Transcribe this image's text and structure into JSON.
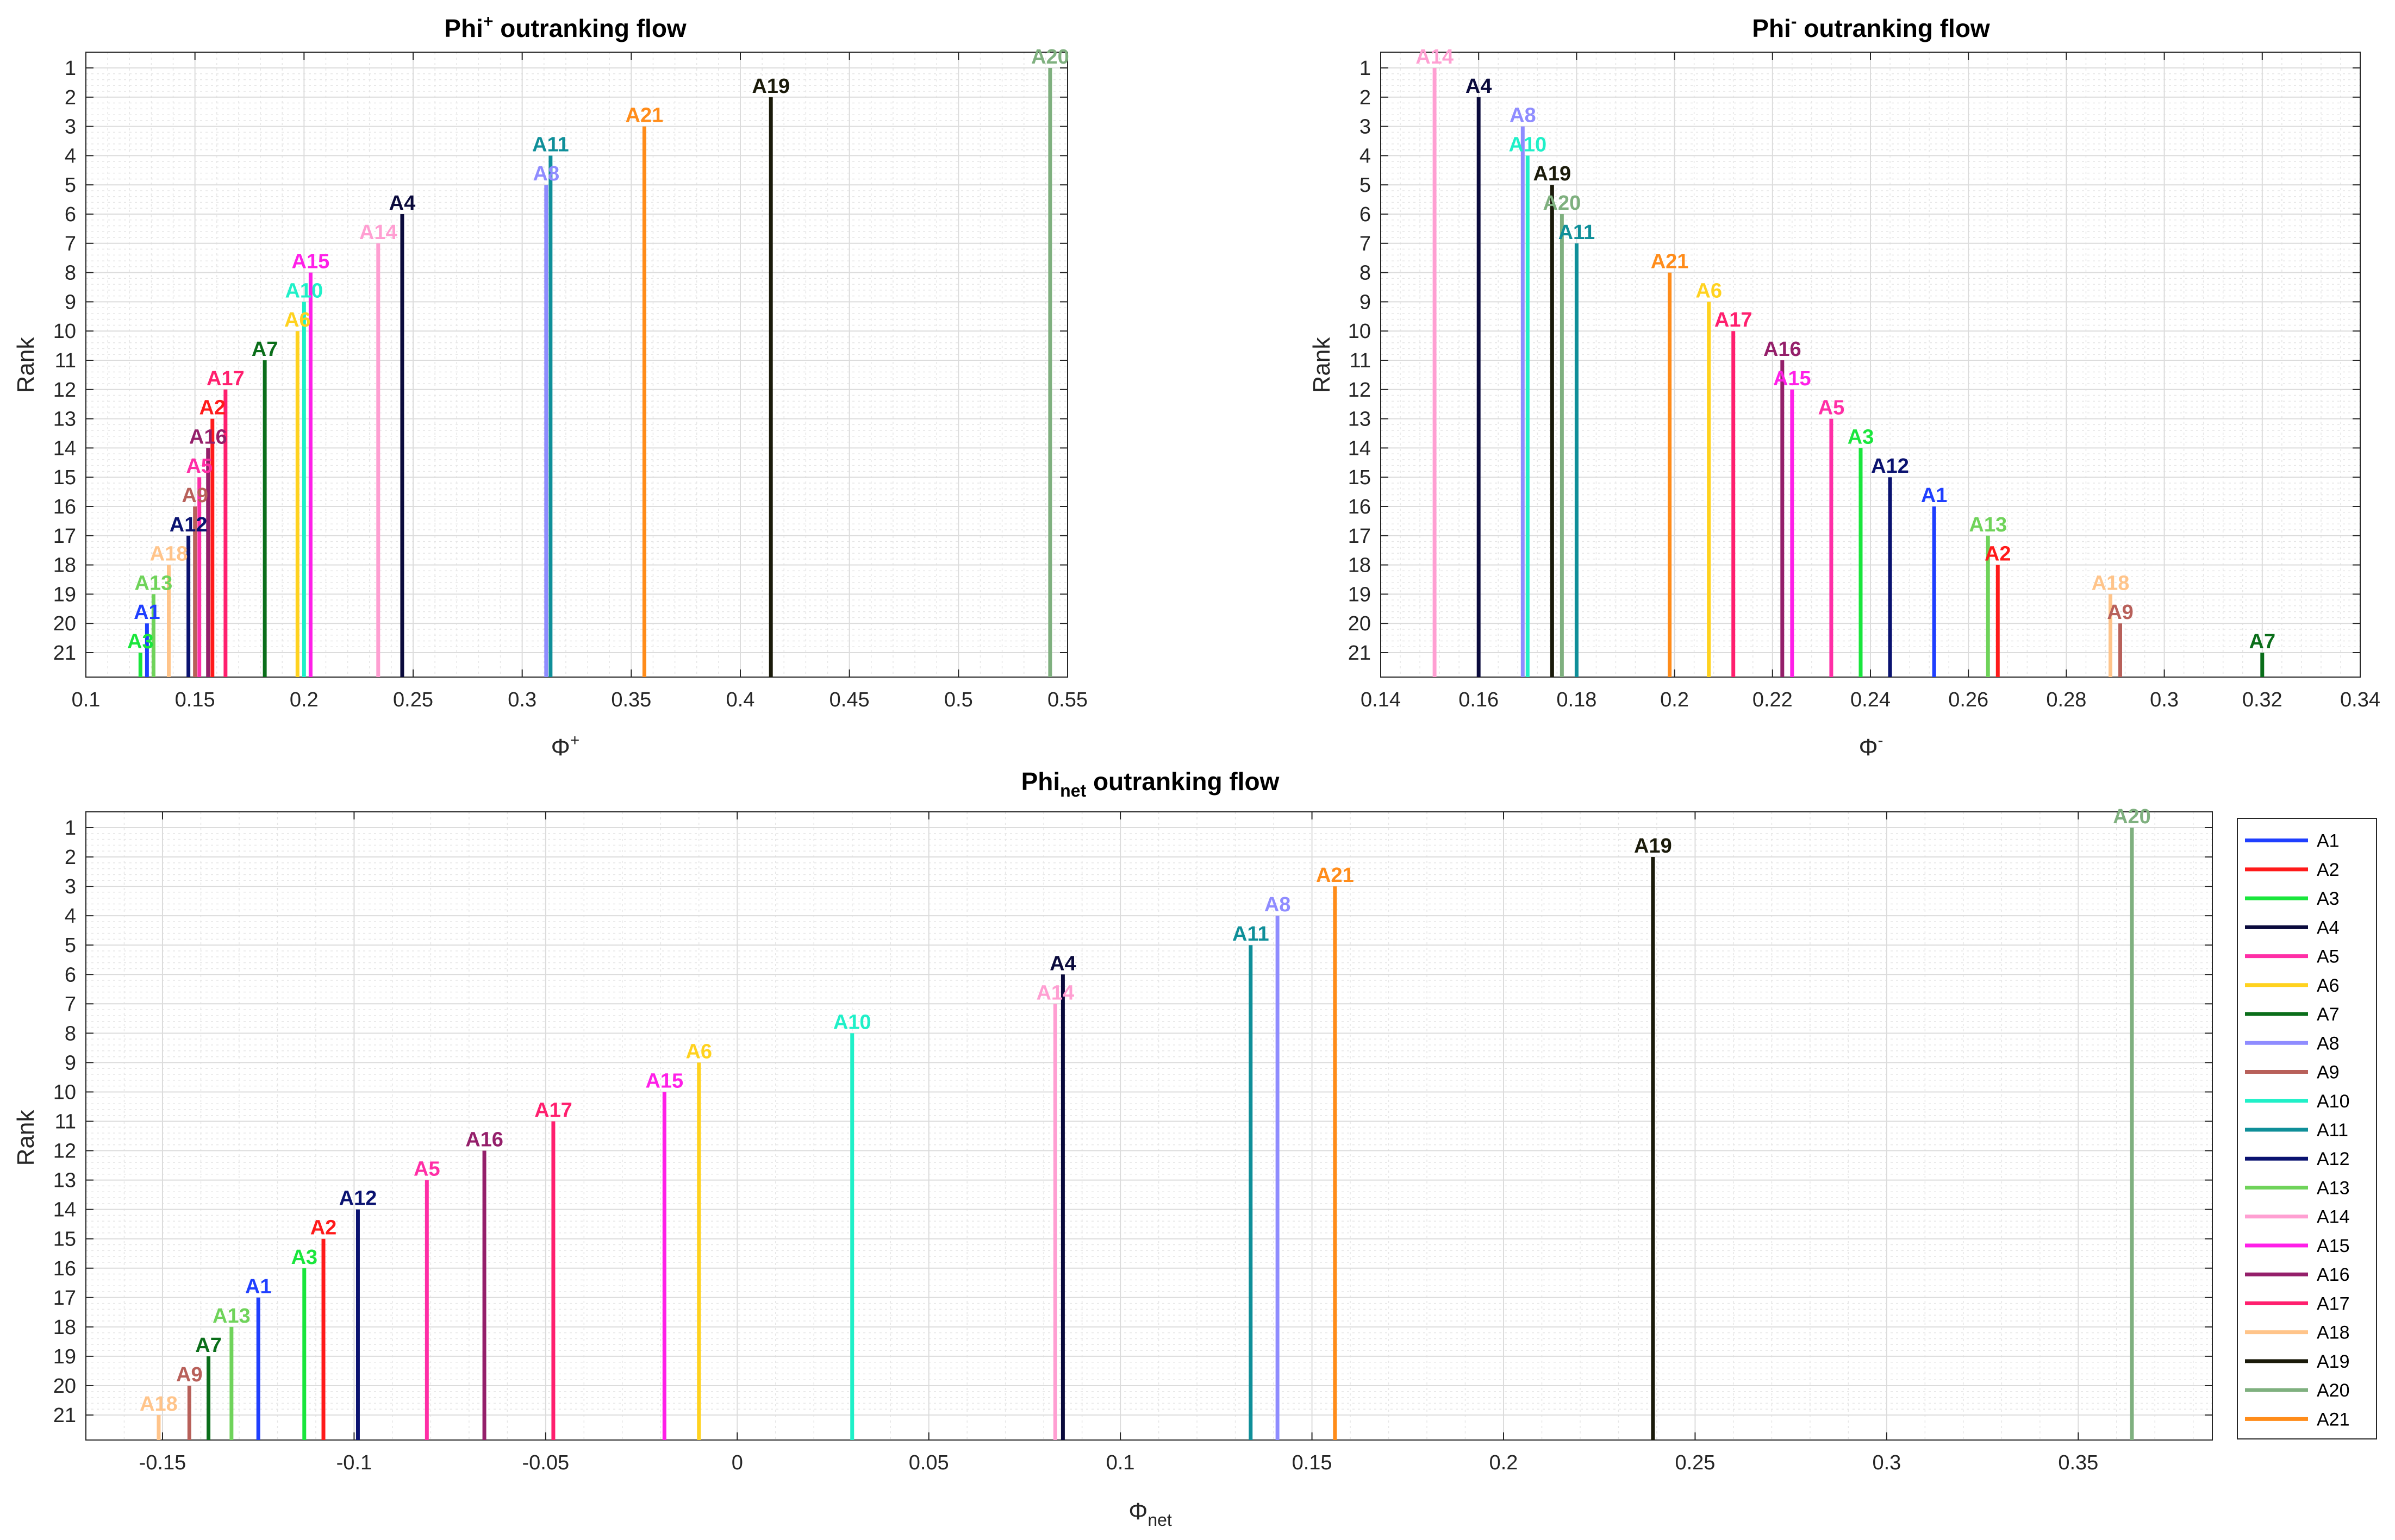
{
  "colors": {
    "A1": "#1f3fff",
    "A2": "#ff1a1a",
    "A3": "#19e63c",
    "A4": "#0a0a3c",
    "A5": "#ff2ea6",
    "A6": "#ffd21f",
    "A7": "#0a6e1a",
    "A8": "#8f8cff",
    "A9": "#b8605a",
    "A10": "#1ff0c8",
    "A11": "#0f8f99",
    "A12": "#0a1270",
    "A13": "#6fd35a",
    "A14": "#ff9fd2",
    "A15": "#ff1fe8",
    "A16": "#941f6a",
    "A17": "#ff1f6e",
    "A18": "#ffc48a",
    "A19": "#1a1a0a",
    "A20": "#7fb07f",
    "A21": "#ff8c1a"
  },
  "chart_data": [
    {
      "type": "stem",
      "title": {
        "main": "Phi",
        "sup": "+",
        "rest": " outranking flow"
      },
      "xlabel": {
        "main": "Φ",
        "sup": "+"
      },
      "ylabel": "Rank",
      "xlim": [
        0.1,
        0.55
      ],
      "xticks": [
        0.1,
        0.15,
        0.2,
        0.25,
        0.3,
        0.35,
        0.4,
        0.45,
        0.5,
        0.55
      ],
      "xtick_labels": [
        "0.1",
        "0.15",
        "0.2",
        "0.25",
        "0.3",
        "0.35",
        "0.4",
        "0.45",
        "0.5",
        "0.55"
      ],
      "ylim": [
        1,
        21
      ],
      "yticks": [
        "1",
        "2",
        "3",
        "4",
        "5",
        "6",
        "7",
        "8",
        "9",
        "10",
        "11",
        "12",
        "13",
        "14",
        "15",
        "16",
        "17",
        "18",
        "19",
        "20",
        "21"
      ],
      "grid": true,
      "points": [
        {
          "name": "A20",
          "x": 0.542,
          "rank": 1
        },
        {
          "name": "A19",
          "x": 0.414,
          "rank": 2
        },
        {
          "name": "A21",
          "x": 0.356,
          "rank": 3
        },
        {
          "name": "A11",
          "x": 0.313,
          "rank": 4
        },
        {
          "name": "A8",
          "x": 0.311,
          "rank": 5
        },
        {
          "name": "A4",
          "x": 0.245,
          "rank": 6
        },
        {
          "name": "A14",
          "x": 0.234,
          "rank": 7
        },
        {
          "name": "A15",
          "x": 0.203,
          "rank": 8
        },
        {
          "name": "A10",
          "x": 0.2,
          "rank": 9
        },
        {
          "name": "A6",
          "x": 0.197,
          "rank": 10
        },
        {
          "name": "A7",
          "x": 0.182,
          "rank": 11
        },
        {
          "name": "A17",
          "x": 0.164,
          "rank": 12
        },
        {
          "name": "A2",
          "x": 0.158,
          "rank": 13
        },
        {
          "name": "A16",
          "x": 0.156,
          "rank": 14
        },
        {
          "name": "A5",
          "x": 0.152,
          "rank": 15
        },
        {
          "name": "A9",
          "x": 0.15,
          "rank": 16
        },
        {
          "name": "A12",
          "x": 0.147,
          "rank": 17
        },
        {
          "name": "A18",
          "x": 0.138,
          "rank": 18
        },
        {
          "name": "A13",
          "x": 0.131,
          "rank": 19
        },
        {
          "name": "A1",
          "x": 0.128,
          "rank": 20
        },
        {
          "name": "A3",
          "x": 0.125,
          "rank": 21
        }
      ]
    },
    {
      "type": "stem",
      "title": {
        "main": "Phi",
        "sup": "-",
        "rest": " outranking flow"
      },
      "xlabel": {
        "main": "Φ",
        "sup": "-"
      },
      "ylabel": "Rank",
      "xlim": [
        0.14,
        0.34
      ],
      "xticks": [
        0.14,
        0.16,
        0.18,
        0.2,
        0.22,
        0.24,
        0.26,
        0.28,
        0.3,
        0.32,
        0.34
      ],
      "xtick_labels": [
        "0.14",
        "0.16",
        "0.18",
        "0.2",
        "0.22",
        "0.24",
        "0.26",
        "0.28",
        "0.3",
        "0.32",
        "0.34"
      ],
      "ylim": [
        1,
        21
      ],
      "yticks": [
        "1",
        "2",
        "3",
        "4",
        "5",
        "6",
        "7",
        "8",
        "9",
        "10",
        "11",
        "12",
        "13",
        "14",
        "15",
        "16",
        "17",
        "18",
        "19",
        "20",
        "21"
      ],
      "grid": true,
      "points": [
        {
          "name": "A14",
          "x": 0.151,
          "rank": 1
        },
        {
          "name": "A4",
          "x": 0.16,
          "rank": 2
        },
        {
          "name": "A8",
          "x": 0.169,
          "rank": 3
        },
        {
          "name": "A10",
          "x": 0.17,
          "rank": 4
        },
        {
          "name": "A19",
          "x": 0.175,
          "rank": 5
        },
        {
          "name": "A20",
          "x": 0.177,
          "rank": 6
        },
        {
          "name": "A11",
          "x": 0.18,
          "rank": 7
        },
        {
          "name": "A21",
          "x": 0.199,
          "rank": 8
        },
        {
          "name": "A6",
          "x": 0.207,
          "rank": 9
        },
        {
          "name": "A17",
          "x": 0.212,
          "rank": 10
        },
        {
          "name": "A16",
          "x": 0.222,
          "rank": 11
        },
        {
          "name": "A15",
          "x": 0.224,
          "rank": 12
        },
        {
          "name": "A5",
          "x": 0.232,
          "rank": 13
        },
        {
          "name": "A3",
          "x": 0.238,
          "rank": 14
        },
        {
          "name": "A12",
          "x": 0.244,
          "rank": 15
        },
        {
          "name": "A1",
          "x": 0.253,
          "rank": 16
        },
        {
          "name": "A13",
          "x": 0.264,
          "rank": 17
        },
        {
          "name": "A2",
          "x": 0.266,
          "rank": 18
        },
        {
          "name": "A18",
          "x": 0.289,
          "rank": 19
        },
        {
          "name": "A9",
          "x": 0.291,
          "rank": 20
        },
        {
          "name": "A7",
          "x": 0.32,
          "rank": 21
        }
      ]
    },
    {
      "type": "stem",
      "title": {
        "main": "Phi",
        "sub": "net",
        "rest": " outranking flow"
      },
      "xlabel": {
        "main": "Φ",
        "sub": "net"
      },
      "ylabel": "Rank",
      "xlim": [
        -0.17,
        0.385
      ],
      "xticks": [
        -0.15,
        -0.1,
        -0.05,
        0,
        0.05,
        0.1,
        0.15,
        0.2,
        0.25,
        0.3,
        0.35
      ],
      "xtick_labels": [
        "-0.15",
        "-0.1",
        "-0.05",
        "0",
        "0.05",
        "0.1",
        "0.15",
        "0.2",
        "0.25",
        "0.3",
        "0.35"
      ],
      "ylim": [
        1,
        21
      ],
      "yticks": [
        "1",
        "2",
        "3",
        "4",
        "5",
        "6",
        "7",
        "8",
        "9",
        "10",
        "11",
        "12",
        "13",
        "14",
        "15",
        "16",
        "17",
        "18",
        "19",
        "20",
        "21"
      ],
      "grid": true,
      "legend": {
        "position": "right",
        "entries": [
          "A1",
          "A2",
          "A3",
          "A4",
          "A5",
          "A6",
          "A7",
          "A8",
          "A9",
          "A10",
          "A11",
          "A12",
          "A13",
          "A14",
          "A15",
          "A16",
          "A17",
          "A18",
          "A19",
          "A20",
          "A21"
        ]
      },
      "points": [
        {
          "name": "A20",
          "x": 0.364,
          "rank": 1
        },
        {
          "name": "A19",
          "x": 0.239,
          "rank": 2
        },
        {
          "name": "A21",
          "x": 0.156,
          "rank": 3
        },
        {
          "name": "A8",
          "x": 0.141,
          "rank": 4
        },
        {
          "name": "A11",
          "x": 0.134,
          "rank": 5
        },
        {
          "name": "A4",
          "x": 0.085,
          "rank": 6
        },
        {
          "name": "A14",
          "x": 0.083,
          "rank": 7
        },
        {
          "name": "A10",
          "x": 0.03,
          "rank": 8
        },
        {
          "name": "A6",
          "x": -0.01,
          "rank": 9
        },
        {
          "name": "A15",
          "x": -0.019,
          "rank": 10
        },
        {
          "name": "A17",
          "x": -0.048,
          "rank": 11
        },
        {
          "name": "A16",
          "x": -0.066,
          "rank": 12
        },
        {
          "name": "A5",
          "x": -0.081,
          "rank": 13
        },
        {
          "name": "A12",
          "x": -0.099,
          "rank": 14
        },
        {
          "name": "A2",
          "x": -0.108,
          "rank": 15
        },
        {
          "name": "A3",
          "x": -0.113,
          "rank": 16
        },
        {
          "name": "A1",
          "x": -0.125,
          "rank": 17
        },
        {
          "name": "A13",
          "x": -0.132,
          "rank": 18
        },
        {
          "name": "A7",
          "x": -0.138,
          "rank": 19
        },
        {
          "name": "A9",
          "x": -0.143,
          "rank": 20
        },
        {
          "name": "A18",
          "x": -0.151,
          "rank": 21
        }
      ]
    }
  ]
}
